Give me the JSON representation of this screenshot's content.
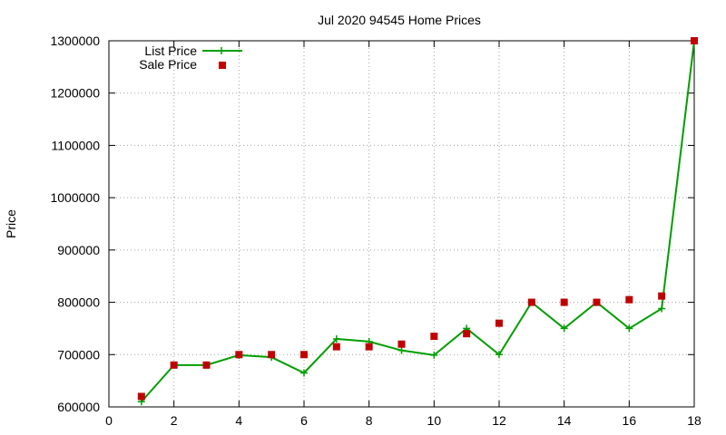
{
  "chart_data": {
    "type": "line",
    "title": "Jul 2020 94545 Home Prices",
    "xlabel": "",
    "ylabel": "Price",
    "xlim": [
      0,
      18
    ],
    "ylim": [
      600000,
      1300000
    ],
    "xticks": [
      0,
      2,
      4,
      6,
      8,
      10,
      12,
      14,
      16,
      18
    ],
    "yticks": [
      600000,
      700000,
      800000,
      900000,
      1000000,
      1100000,
      1200000,
      1300000
    ],
    "grid": true,
    "legend_position": "top-left",
    "series": [
      {
        "name": "List Price",
        "style": "line-with-plus",
        "color": "#009e00",
        "x": [
          1,
          2,
          3,
          4,
          5,
          6,
          7,
          8,
          9,
          10,
          11,
          12,
          13,
          14,
          15,
          16,
          17,
          18
        ],
        "values": [
          610000,
          680000,
          680000,
          699000,
          695000,
          665000,
          730000,
          725000,
          708000,
          699000,
          750000,
          700000,
          800000,
          750000,
          800000,
          750000,
          788000,
          1300000
        ]
      },
      {
        "name": "Sale Price",
        "style": "square-points",
        "color": "#c00000",
        "x": [
          1,
          2,
          3,
          4,
          5,
          6,
          7,
          8,
          9,
          10,
          11,
          12,
          13,
          14,
          15,
          16,
          17,
          18
        ],
        "values": [
          620000,
          680000,
          680000,
          700000,
          700000,
          700000,
          715000,
          715000,
          720000,
          735000,
          740000,
          760000,
          800000,
          800000,
          800000,
          805000,
          812000,
          1300000
        ]
      }
    ]
  }
}
